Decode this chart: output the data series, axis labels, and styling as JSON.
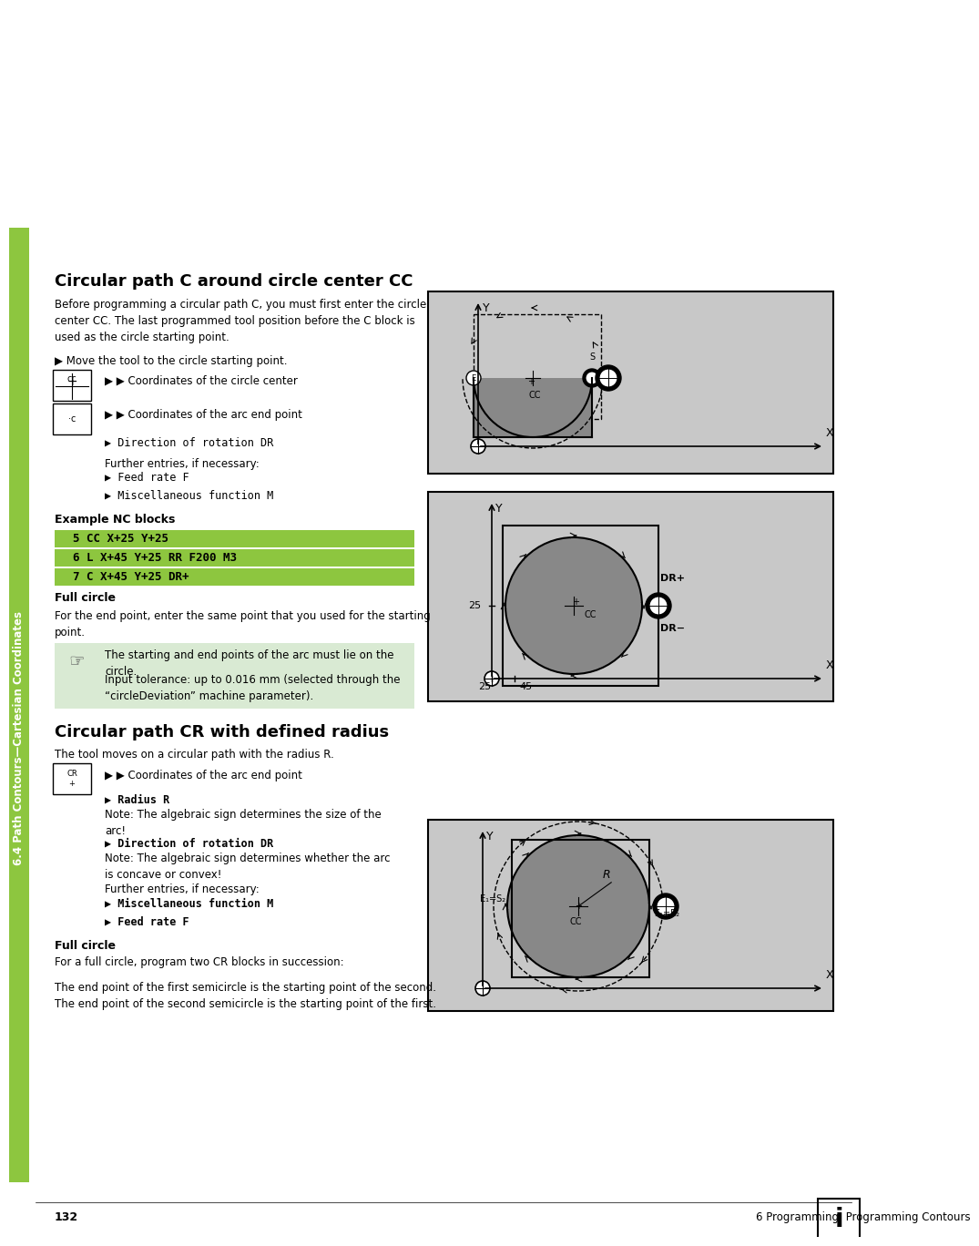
{
  "page_bg": "#ffffff",
  "sidebar_color": "#8dc63f",
  "sidebar_text": "6.4 Path Contours—Cartesian Coordinates",
  "title1": "Circular path C around circle center CC",
  "title2": "Circular path CR with defined radius",
  "body_text_color": "#000000",
  "green_bar_color": "#8dc63f",
  "diagram_bg": "#d3d3d3",
  "diagram_border": "#000000",
  "circle_fill": "#a9a9a9",
  "note_bg": "#d9ead3",
  "nc_bar_color": "#8dc63f",
  "footer_text": "132",
  "footer_right": "6 Programming: Programming Contours"
}
